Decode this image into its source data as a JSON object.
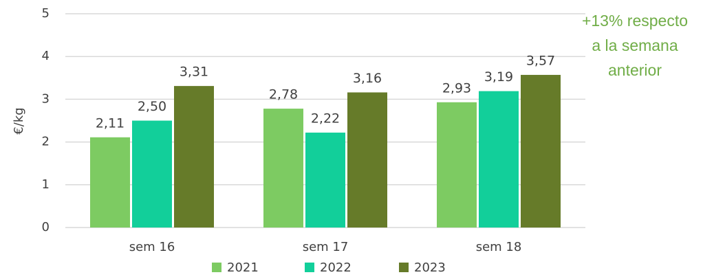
{
  "chart_data": {
    "type": "bar",
    "categories": [
      "sem 16",
      "sem 17",
      "sem 18"
    ],
    "series": [
      {
        "name": "2021",
        "color": "#7dcb62",
        "values": [
          2.11,
          2.78,
          2.93
        ],
        "value_labels": [
          "2,11",
          "2,78",
          "2,93"
        ]
      },
      {
        "name": "2022",
        "color": "#12cf9a",
        "values": [
          2.5,
          2.22,
          3.19
        ],
        "value_labels": [
          "2,50",
          "2,22",
          "3,19"
        ]
      },
      {
        "name": "2023",
        "color": "#667b29",
        "values": [
          3.31,
          3.16,
          3.57
        ],
        "value_labels": [
          "3,31",
          "3,16",
          "3,57"
        ]
      }
    ],
    "ylabel": "€/kg",
    "ylim": [
      0,
      5
    ],
    "yticks": [
      0,
      1,
      2,
      3,
      4,
      5
    ],
    "grid": true,
    "annotation": [
      "+13% respecto",
      "a la semana",
      "anterior"
    ],
    "legend": "bottom"
  }
}
